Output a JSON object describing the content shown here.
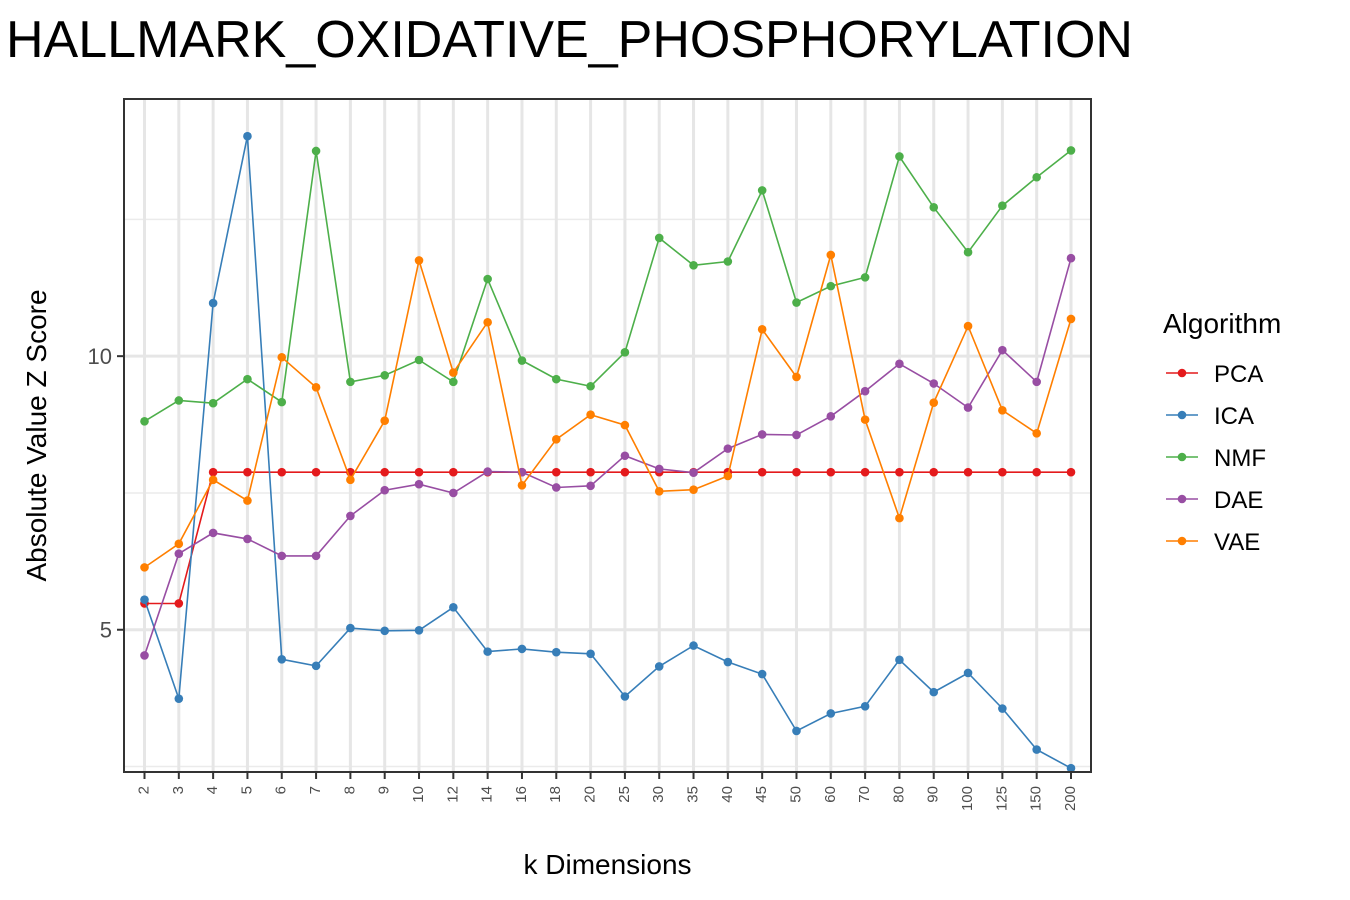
{
  "chart_data": {
    "type": "line",
    "title": "HALLMARK_OXIDATIVE_PHOSPHORYLATION",
    "xlabel": "k Dimensions",
    "ylabel": "Absolute Value Z Score",
    "categories": [
      "2",
      "3",
      "4",
      "5",
      "6",
      "7",
      "8",
      "9",
      "10",
      "12",
      "14",
      "16",
      "18",
      "20",
      "25",
      "30",
      "35",
      "40",
      "45",
      "50",
      "60",
      "70",
      "80",
      "90",
      "100",
      "125",
      "150",
      "200"
    ],
    "y_ticks": [
      5,
      10
    ],
    "ylim": [
      2.4,
      14.7
    ],
    "grid": true,
    "legend_title": "Algorithm",
    "legend_position": "right",
    "series": [
      {
        "name": "PCA",
        "color": "#e41a1c",
        "values": [
          5.48,
          5.48,
          7.88,
          7.88,
          7.88,
          7.88,
          7.88,
          7.88,
          7.88,
          7.88,
          7.88,
          7.88,
          7.88,
          7.88,
          7.88,
          7.88,
          7.88,
          7.88,
          7.88,
          7.88,
          7.88,
          7.88,
          7.88,
          7.88,
          7.88,
          7.88,
          7.88,
          7.88
        ]
      },
      {
        "name": "ICA",
        "color": "#377eb8",
        "values": [
          5.55,
          3.74,
          10.97,
          14.02,
          4.46,
          4.34,
          5.03,
          4.98,
          4.99,
          5.41,
          4.6,
          4.65,
          4.59,
          4.56,
          3.78,
          4.33,
          4.71,
          4.41,
          4.19,
          3.15,
          3.47,
          3.6,
          4.45,
          3.86,
          4.21,
          3.56,
          2.81,
          2.47
        ]
      },
      {
        "name": "NMF",
        "color": "#4daf4a",
        "values": [
          8.81,
          9.19,
          9.14,
          9.58,
          9.16,
          13.75,
          9.53,
          9.65,
          9.93,
          9.53,
          11.41,
          9.92,
          9.58,
          9.45,
          10.07,
          12.16,
          11.66,
          11.73,
          13.03,
          10.98,
          11.28,
          11.44,
          13.65,
          12.72,
          11.9,
          12.75,
          13.27,
          13.76
        ]
      },
      {
        "name": "DAE",
        "color": "#984ea3",
        "values": [
          4.53,
          6.39,
          6.77,
          6.66,
          6.35,
          6.35,
          7.08,
          7.55,
          7.66,
          7.5,
          7.89,
          7.88,
          7.6,
          7.63,
          8.18,
          7.94,
          7.87,
          8.31,
          8.57,
          8.56,
          8.9,
          9.36,
          9.86,
          9.5,
          9.06,
          10.11,
          9.53,
          11.79
        ]
      },
      {
        "name": "VAE",
        "color": "#ff7f00",
        "values": [
          6.14,
          6.57,
          7.74,
          7.36,
          9.98,
          9.43,
          7.74,
          8.82,
          11.75,
          9.7,
          10.62,
          7.64,
          8.48,
          8.93,
          8.74,
          7.53,
          7.56,
          7.81,
          10.49,
          9.62,
          11.85,
          8.84,
          7.04,
          9.15,
          10.55,
          9.01,
          8.59,
          10.68
        ]
      }
    ]
  }
}
